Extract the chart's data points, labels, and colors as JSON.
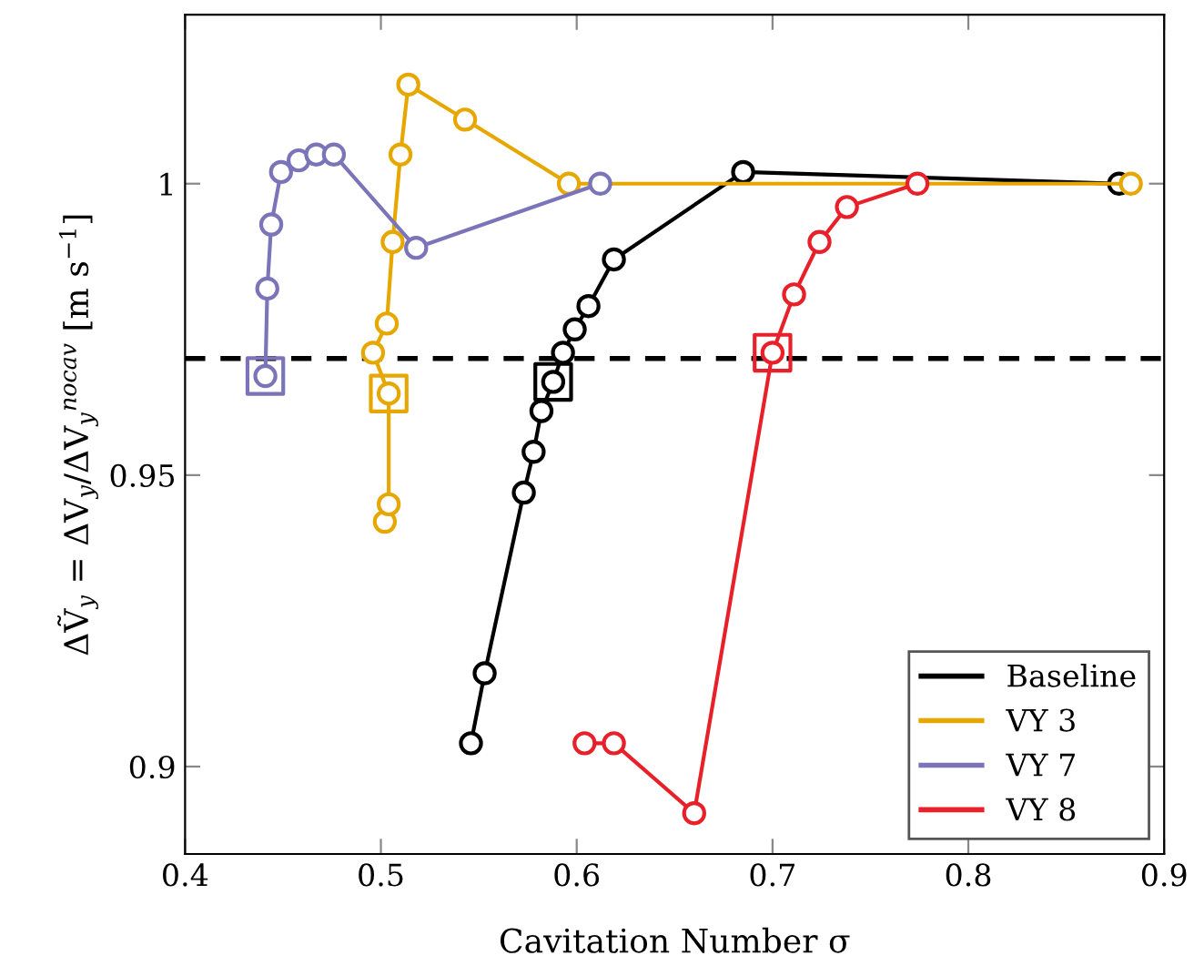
{
  "chart_data": {
    "type": "line",
    "xlabel": "Cavitation Number σ",
    "ylabel": "ΔṼ$_{y}$ = ΔV$_{y}$/ΔV$_{y}$$^{nocav}$ [m s$^{−1}$]",
    "xlim": [
      0.4,
      0.9
    ],
    "ylim": [
      0.885,
      1.029
    ],
    "xticks": [
      0.4,
      0.5,
      0.6,
      0.7,
      0.8,
      0.9
    ],
    "yticks": [
      0.9,
      0.95,
      1
    ],
    "grid": false,
    "legend": "bottom right",
    "line_style": "solid",
    "ref_lines": [
      {
        "axis": "y",
        "value": 0.97,
        "color": "#000000",
        "line_style": "dashed"
      }
    ],
    "series": [
      {
        "type": "scatter",
        "marker": "square",
        "colors": [
          "#000000",
          "#e6a700",
          "#7b74b8",
          "#e8202a"
        ],
        "x": [
          0.588,
          0.504,
          0.441,
          0.7
        ],
        "values": [
          0.966,
          0.964,
          0.967,
          0.971
        ]
      },
      {
        "name": "Baseline",
        "marker": "circle",
        "color": "#000000",
        "x": [
          0.546,
          0.553,
          0.573,
          0.578,
          0.582,
          0.588,
          0.593,
          0.599,
          0.606,
          0.619,
          0.685,
          0.877
        ],
        "values": [
          0.904,
          0.916,
          0.947,
          0.954,
          0.961,
          0.966,
          0.971,
          0.975,
          0.979,
          0.987,
          1.002,
          1.0
        ]
      },
      {
        "name": "VY 3",
        "marker": "circle",
        "color": "#e6a700",
        "x": [
          0.502,
          0.504,
          0.504,
          0.496,
          0.503,
          0.506,
          0.51,
          0.514,
          0.543,
          0.596,
          0.883
        ],
        "values": [
          0.942,
          0.945,
          0.964,
          0.971,
          0.976,
          0.99,
          1.005,
          1.017,
          1.011,
          1.0,
          1.0
        ]
      },
      {
        "name": "VY 7",
        "marker": "circle",
        "color": "#7b74b8",
        "x": [
          0.441,
          0.442,
          0.444,
          0.449,
          0.458,
          0.467,
          0.476,
          0.518,
          0.612
        ],
        "values": [
          0.967,
          0.982,
          0.993,
          1.002,
          1.004,
          1.005,
          1.005,
          0.989,
          1.0
        ]
      },
      {
        "name": "VY 8",
        "marker": "circle",
        "color": "#e8202a",
        "x": [
          0.604,
          0.619,
          0.66,
          0.7,
          0.711,
          0.724,
          0.738,
          0.774
        ],
        "values": [
          0.904,
          0.904,
          0.892,
          0.971,
          0.981,
          0.99,
          0.996,
          1.0
        ]
      }
    ]
  }
}
